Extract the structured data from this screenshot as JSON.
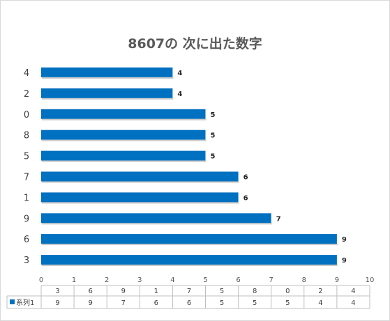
{
  "chart_data": {
    "type": "bar",
    "orientation": "horizontal",
    "title": "8607の 次に出た数字",
    "categories": [
      "3",
      "6",
      "9",
      "1",
      "7",
      "5",
      "8",
      "0",
      "2",
      "4"
    ],
    "series": [
      {
        "name": "系列1",
        "values": [
          9,
          9,
          7,
          6,
          6,
          5,
          5,
          5,
          4,
          4
        ]
      }
    ],
    "xlim": [
      0,
      10
    ],
    "x_ticks": [
      "0",
      "1",
      "2",
      "3",
      "4",
      "5",
      "6",
      "7",
      "8",
      "9",
      "10"
    ],
    "grid": false,
    "data_labels": true,
    "data_table": true,
    "bar_color": "#0070c0"
  }
}
